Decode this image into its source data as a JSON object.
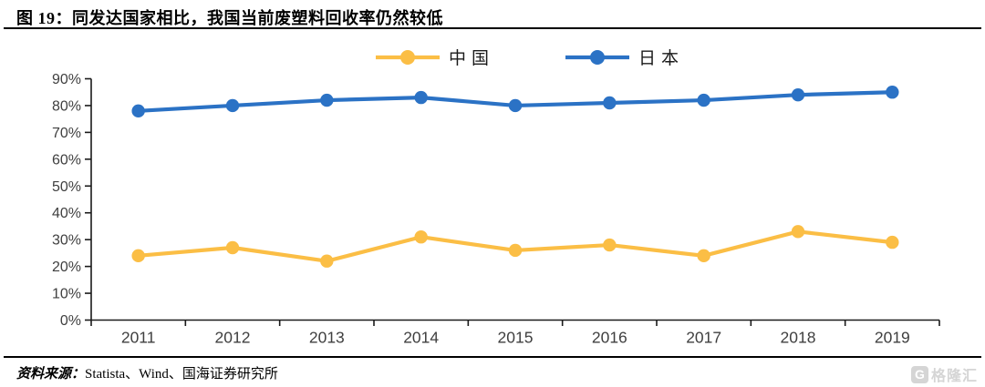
{
  "header": {
    "title": "图 19：同发达国家相比，我国当前废塑料回收率仍然较低"
  },
  "chart_data": {
    "type": "line",
    "title": "",
    "categories": [
      "2011",
      "2012",
      "2013",
      "2014",
      "2015",
      "2016",
      "2017",
      "2018",
      "2019"
    ],
    "series": [
      {
        "name": "中国",
        "color": "#FBBE45",
        "values": [
          24,
          27,
          22,
          31,
          26,
          28,
          24,
          33,
          29
        ]
      },
      {
        "name": "日本",
        "color": "#2B72C5",
        "values": [
          78,
          80,
          82,
          83,
          80,
          81,
          82,
          84,
          85
        ]
      }
    ],
    "xlabel": "",
    "ylabel": "",
    "ylim": [
      0,
      90
    ],
    "ytick_step": 10,
    "ytick_labels": [
      "0%",
      "10%",
      "20%",
      "30%",
      "40%",
      "50%",
      "60%",
      "70%",
      "80%",
      "90%"
    ],
    "grid": false,
    "legend_position": "top"
  },
  "footer": {
    "source_label": "资料来源：",
    "source_text": "Statista、Wind、国海证券研究所",
    "watermark_icon": "G",
    "watermark_text": "格隆汇"
  },
  "colors": {
    "axis": "#1a1a1a",
    "tick_label": "#3f3f3f",
    "rule": "#000000"
  }
}
